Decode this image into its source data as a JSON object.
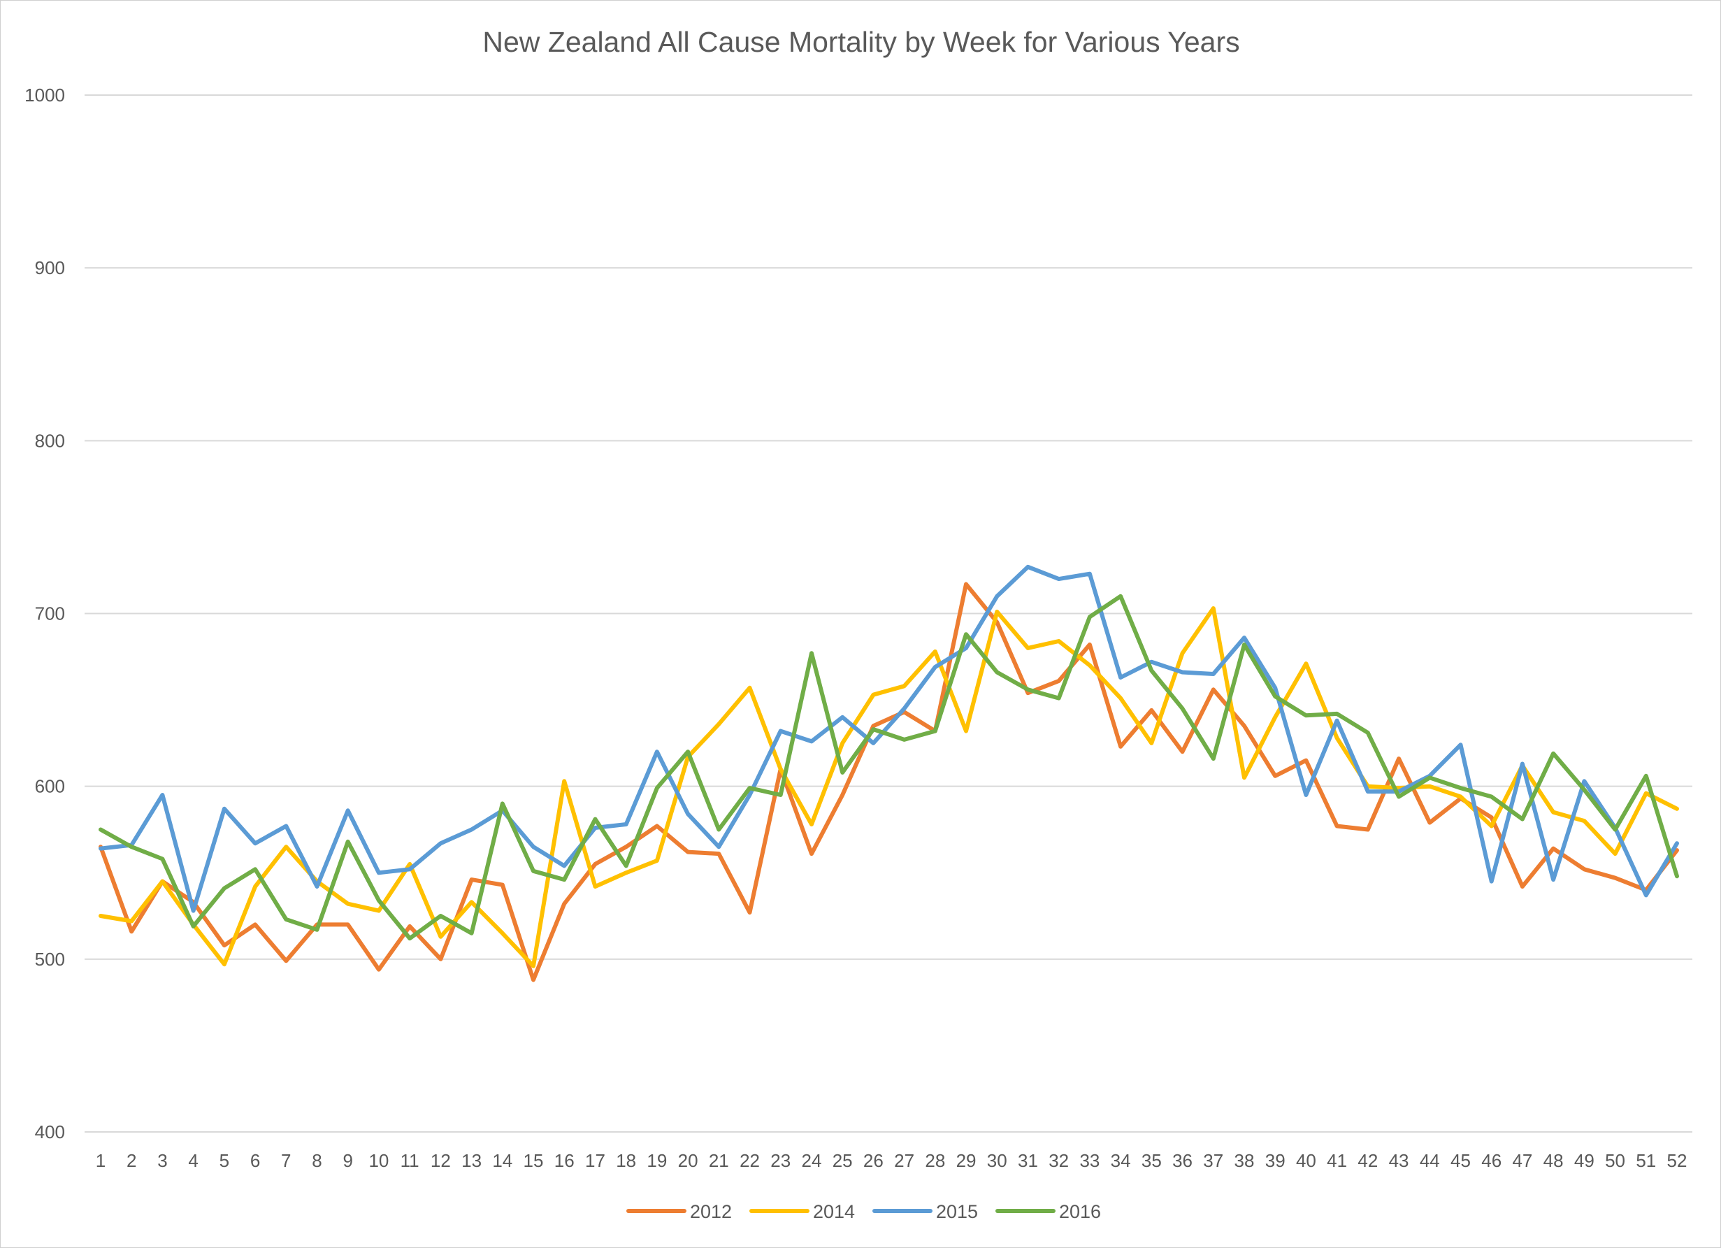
{
  "chart_data": {
    "type": "line",
    "title": "New Zealand All Cause Mortality by Week for Various Years",
    "xlabel": "",
    "ylabel": "",
    "ylim": [
      400,
      1000
    ],
    "yticks": [
      "400",
      "500",
      "600",
      "700",
      "800",
      "900",
      "1000"
    ],
    "grid": true,
    "legend_position": "bottom",
    "x": [
      "1",
      "2",
      "3",
      "4",
      "5",
      "6",
      "7",
      "8",
      "9",
      "10",
      "11",
      "12",
      "13",
      "14",
      "15",
      "16",
      "17",
      "18",
      "19",
      "20",
      "21",
      "22",
      "23",
      "24",
      "25",
      "26",
      "27",
      "28",
      "29",
      "30",
      "31",
      "32",
      "33",
      "34",
      "35",
      "36",
      "37",
      "38",
      "39",
      "40",
      "41",
      "42",
      "43",
      "44",
      "45",
      "46",
      "47",
      "48",
      "49",
      "50",
      "51",
      "52"
    ],
    "series": [
      {
        "name": "2012",
        "color": "#ED7D31",
        "values": [
          565,
          516,
          545,
          533,
          508,
          520,
          499,
          520,
          520,
          494,
          519,
          500,
          546,
          543,
          488,
          532,
          555,
          565,
          577,
          562,
          561,
          527,
          610,
          561,
          595,
          635,
          643,
          632,
          717,
          695,
          654,
          661,
          682,
          623,
          644,
          620,
          656,
          635,
          606,
          615,
          577,
          575,
          616,
          579,
          593,
          582,
          542,
          564,
          552,
          547,
          540,
          563
        ]
      },
      {
        "name": "2014",
        "color": "#FFC000",
        "values": [
          525,
          522,
          545,
          520,
          497,
          542,
          565,
          545,
          532,
          528,
          555,
          513,
          533,
          515,
          496,
          603,
          542,
          550,
          557,
          617,
          636,
          657,
          610,
          578,
          625,
          653,
          658,
          678,
          632,
          701,
          680,
          684,
          670,
          651,
          625,
          677,
          703,
          605,
          640,
          671,
          628,
          600,
          599,
          600,
          594,
          577,
          612,
          585,
          580,
          561,
          596,
          587
        ]
      },
      {
        "name": "2015",
        "color": "#5B9BD5",
        "values": [
          564,
          566,
          595,
          528,
          587,
          567,
          577,
          542,
          586,
          550,
          552,
          567,
          575,
          586,
          565,
          554,
          576,
          578,
          620,
          584,
          565,
          595,
          632,
          626,
          640,
          625,
          645,
          669,
          680,
          710,
          727,
          720,
          723,
          663,
          672,
          666,
          665,
          686,
          657,
          595,
          638,
          597,
          597,
          606,
          624,
          545,
          613,
          546,
          603,
          576,
          537,
          567
        ]
      },
      {
        "name": "2016",
        "color": "#70AD47",
        "values": [
          575,
          565,
          558,
          519,
          541,
          552,
          523,
          517,
          568,
          534,
          512,
          525,
          515,
          590,
          551,
          546,
          581,
          554,
          599,
          620,
          575,
          599,
          595,
          677,
          608,
          633,
          627,
          632,
          688,
          666,
          656,
          651,
          698,
          710,
          667,
          645,
          616,
          682,
          652,
          641,
          642,
          631,
          594,
          605,
          599,
          594,
          581,
          619,
          598,
          575,
          606,
          548
        ]
      }
    ]
  }
}
